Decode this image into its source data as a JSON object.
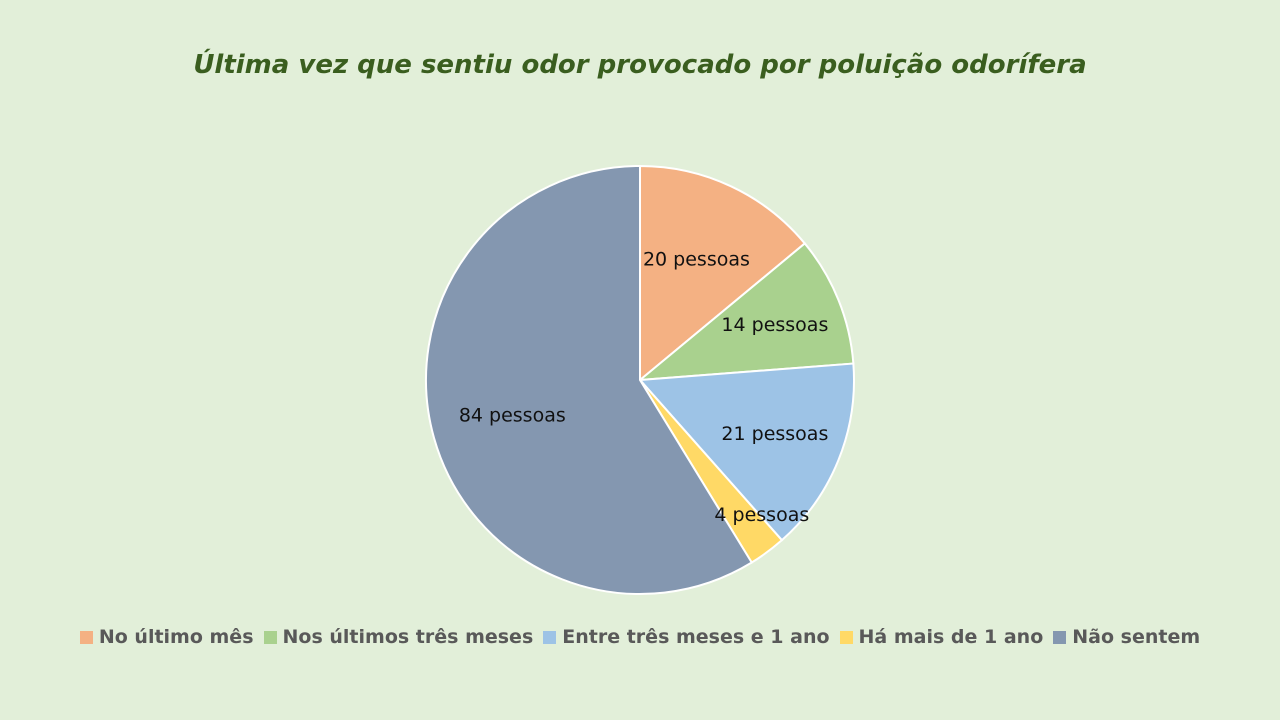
{
  "chart_data": {
    "type": "pie",
    "title": "Última vez que sentiu odor provocado por poluição odorífera",
    "categories": [
      "No último mês",
      "Nos últimos três meses",
      "Entre três meses e 1 ano",
      "Há mais de 1 ano",
      "Não sentem"
    ],
    "values": [
      20,
      14,
      21,
      4,
      84
    ],
    "data_labels": [
      "20 pessoas",
      "14 pessoas",
      "21 pessoas",
      "4 pessoas",
      "84 pessoas"
    ],
    "colors": [
      "#f4b183",
      "#a9d18e",
      "#9dc3e6",
      "#ffd966",
      "#8497b0"
    ],
    "legend_position": "bottom"
  }
}
